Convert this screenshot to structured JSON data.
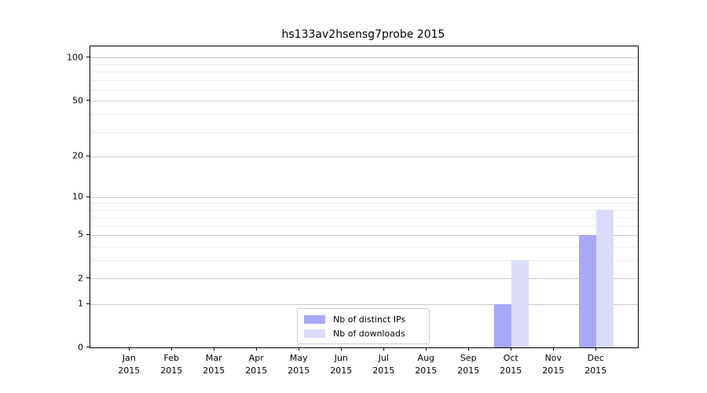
{
  "title": "hs133av2hsensg7probe 2015",
  "chart_data": {
    "type": "bar",
    "title": "hs133av2hsensg7probe 2015",
    "categories": [
      "Jan 2015",
      "Feb 2015",
      "Mar 2015",
      "Apr 2015",
      "May 2015",
      "Jun 2015",
      "Jul 2015",
      "Aug 2015",
      "Sep 2015",
      "Oct 2015",
      "Nov 2015",
      "Dec 2015"
    ],
    "series": [
      {
        "name": "Nb of distinct IPs",
        "color": "#a8a8f7",
        "values": [
          0,
          0,
          0,
          0,
          0,
          0,
          0,
          0,
          0,
          1,
          0,
          5
        ]
      },
      {
        "name": "Nb of downloads",
        "color": "#dbdbfa",
        "values": [
          0,
          0,
          0,
          0,
          0,
          0,
          0,
          0,
          0,
          3,
          0,
          8
        ]
      }
    ],
    "y_axis": {
      "scale": "log1p",
      "major_ticks": [
        0,
        1,
        2,
        5,
        10,
        20,
        50,
        100
      ],
      "minor_ticks": [
        3,
        4,
        6,
        7,
        8,
        9,
        30,
        40,
        60,
        70,
        80,
        90
      ],
      "range": [
        0,
        120
      ]
    },
    "legend_position": "bottom-center",
    "grid": true,
    "colors": {
      "major_grid": "#c9c9c9",
      "minor_grid": "#ededed",
      "spine": "#000000",
      "text": "#000000",
      "background": "#ffffff"
    }
  }
}
